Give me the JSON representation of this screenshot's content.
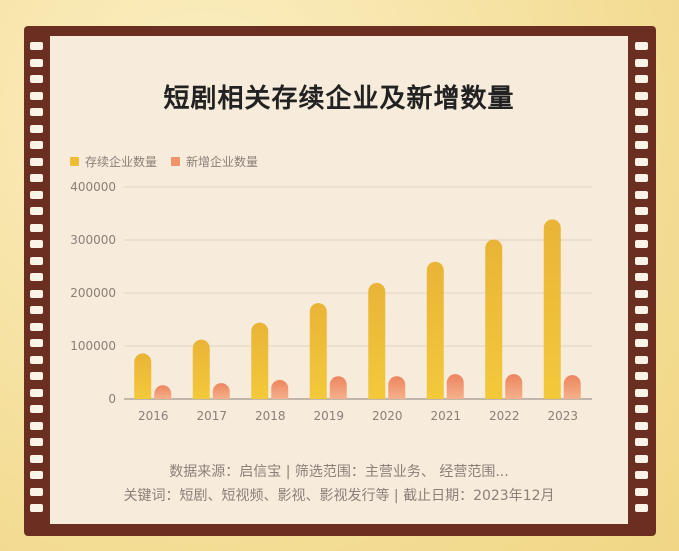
{
  "chart_data": {
    "type": "bar",
    "title": "短剧相关存续企业及新增数量",
    "categories": [
      "2016",
      "2017",
      "2018",
      "2019",
      "2020",
      "2021",
      "2022",
      "2023"
    ],
    "series": [
      {
        "name": "存续企业数量",
        "color": "#eebd35",
        "values": [
          86000,
          112000,
          144000,
          181000,
          219000,
          259000,
          301000,
          339000
        ]
      },
      {
        "name": "新增企业数量",
        "color": "#f0936a",
        "values": [
          26000,
          30000,
          36000,
          43000,
          43000,
          47000,
          47000,
          45000
        ]
      }
    ],
    "ylim": [
      0,
      400000
    ],
    "yticks": [
      "0",
      "100000",
      "200000",
      "300000",
      "400000"
    ],
    "grid": true,
    "legend": "top-left"
  },
  "footer": {
    "line1": "数据来源：启信宝  |  筛选范围：主营业务、 经营范围...",
    "line2": "关键词：短剧、短视频、影视、影视发行等  |  截止日期：2023年12月"
  }
}
